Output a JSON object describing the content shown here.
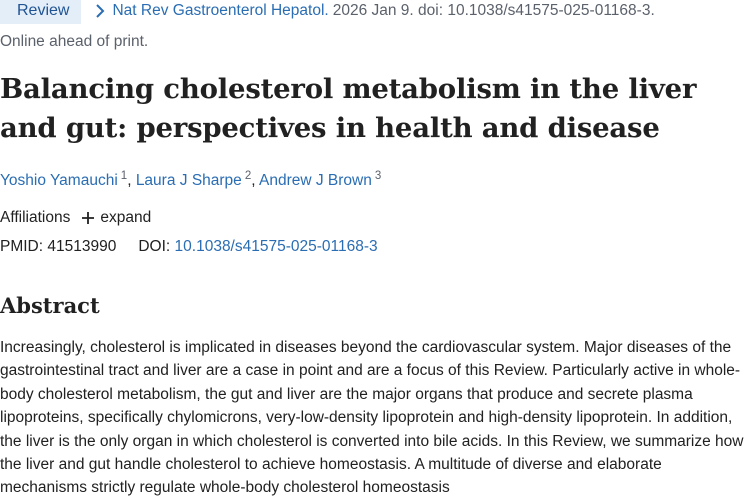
{
  "header": {
    "badge": "Review",
    "journal": "Nat Rev Gastroenterol Hepatol.",
    "citation": "2026 Jan 9. doi: 10.1038/s41575-025-01168-3.",
    "status": "Online ahead of print."
  },
  "article": {
    "title": "Balancing cholesterol metabolism in the liver and gut: perspectives in health and disease",
    "authors": [
      {
        "name": "Yoshio Yamauchi",
        "aff": "1"
      },
      {
        "name": "Laura J Sharpe",
        "aff": "2"
      },
      {
        "name": "Andrew J Brown",
        "aff": "3"
      }
    ],
    "affiliations_label": "Affiliations",
    "expand_label": "expand",
    "pmid_label": "PMID:",
    "pmid": "41513990",
    "doi_label": "DOI:",
    "doi": "10.1038/s41575-025-01168-3"
  },
  "abstract": {
    "heading": "Abstract",
    "text": "Increasingly, cholesterol is implicated in diseases beyond the cardiovascular system. Major diseases of the gastrointestinal tract and liver are a case in point and are a focus of this Review. Particularly active in whole-body cholesterol metabolism, the gut and liver are the major organs that produce and secrete plasma lipoproteins, specifically chylomicrons, very-low-density lipoprotein and high-density lipoprotein. In addition, the liver is the only organ in which cholesterol is converted into bile acids. In this Review, we summarize how the liver and gut handle cholesterol to achieve homeostasis. A multitude of diverse and elaborate mechanisms strictly regulate whole-body cholesterol homeostasis"
  },
  "colors": {
    "link": "#2a6db3",
    "badge_bg": "#e4eef8",
    "muted": "#5b616b"
  },
  "icons": {
    "journal_chevron": "chevron-right-icon",
    "expand": "plus-icon"
  }
}
